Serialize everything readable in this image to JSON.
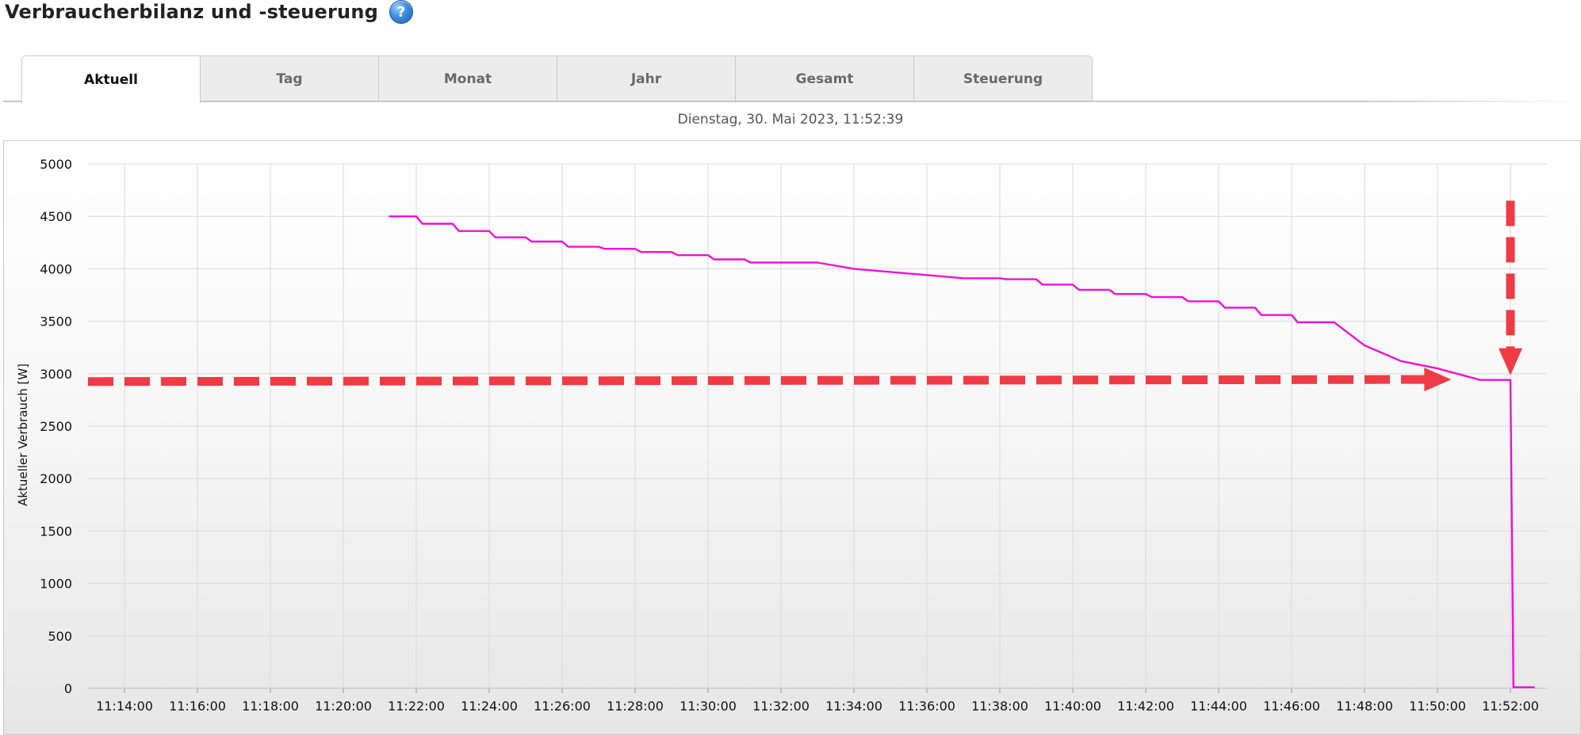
{
  "header": {
    "title": "Verbraucherbilanz und -steuerung",
    "help_icon": "help-question-icon"
  },
  "tabs": [
    {
      "label": "Aktuell",
      "active": true
    },
    {
      "label": "Tag",
      "active": false
    },
    {
      "label": "Monat",
      "active": false
    },
    {
      "label": "Jahr",
      "active": false
    },
    {
      "label": "Gesamt",
      "active": false
    },
    {
      "label": "Steuerung",
      "active": false
    }
  ],
  "datetime": "Dienstag, 30. Mai 2023, 11:52:39",
  "colors": {
    "series": "#ee11d6",
    "annotation": "#ef3b45",
    "help_icon": "#3d8ee0"
  },
  "chart_data": {
    "type": "line",
    "ylabel": "Aktueller Verbrauch [W]",
    "xlabel": "",
    "ylim": [
      0,
      5000
    ],
    "y_ticks": [
      "5000",
      "4500",
      "4000",
      "3500",
      "3000",
      "2500",
      "2000",
      "1500",
      "1000",
      "500",
      "0"
    ],
    "x_range": [
      "11:13:00",
      "11:53:00"
    ],
    "x_ticks": [
      "11:14:00",
      "11:16:00",
      "11:18:00",
      "11:20:00",
      "11:22:00",
      "11:24:00",
      "11:26:00",
      "11:28:00",
      "11:30:00",
      "11:32:00",
      "11:34:00",
      "11:36:00",
      "11:38:00",
      "11:40:00",
      "11:42:00",
      "11:44:00",
      "11:46:00",
      "11:48:00",
      "11:50:00",
      "11:52:00"
    ],
    "grid": true,
    "series": [
      {
        "x": [
          "11:21:15",
          "11:22:00",
          "11:22:10",
          "11:23:00",
          "11:23:10",
          "11:24:00",
          "11:24:10",
          "11:25:00",
          "11:25:10",
          "11:26:00",
          "11:26:10",
          "11:27:00",
          "11:27:10",
          "11:28:00",
          "11:28:10",
          "11:29:00",
          "11:29:10",
          "11:30:00",
          "11:30:10",
          "11:31:00",
          "11:31:10",
          "11:32:00",
          "11:32:10",
          "11:33:00",
          "11:34:00",
          "11:36:00",
          "11:37:00",
          "11:38:00",
          "11:38:10",
          "11:39:00",
          "11:39:10",
          "11:40:00",
          "11:40:10",
          "11:41:00",
          "11:41:10",
          "11:42:00",
          "11:42:10",
          "11:43:00",
          "11:43:10",
          "11:44:00",
          "11:44:10",
          "11:45:00",
          "11:45:10",
          "11:46:00",
          "11:46:10",
          "11:47:10",
          "11:48:00",
          "11:49:00",
          "11:50:00",
          "11:51:10",
          "11:52:00",
          "11:52:05",
          "11:52:40"
        ],
        "y": [
          4500,
          4500,
          4430,
          4430,
          4360,
          4360,
          4300,
          4300,
          4260,
          4260,
          4210,
          4210,
          4190,
          4190,
          4160,
          4160,
          4130,
          4130,
          4090,
          4090,
          4060,
          4060,
          4060,
          4060,
          4000,
          3940,
          3910,
          3910,
          3900,
          3900,
          3850,
          3850,
          3800,
          3800,
          3760,
          3760,
          3730,
          3730,
          3690,
          3690,
          3630,
          3630,
          3560,
          3560,
          3490,
          3490,
          3270,
          3120,
          3050,
          2940,
          2940,
          10,
          10
        ]
      }
    ],
    "annotations": [
      {
        "type": "dashed-arrow",
        "direction": "right",
        "from": [
          "11:13:00",
          2925
        ],
        "to": [
          "11:50:20",
          2945
        ]
      },
      {
        "type": "dashed-arrow",
        "direction": "down",
        "from": [
          "11:52:00",
          4650
        ],
        "to": [
          "11:52:00",
          3000
        ]
      }
    ]
  }
}
